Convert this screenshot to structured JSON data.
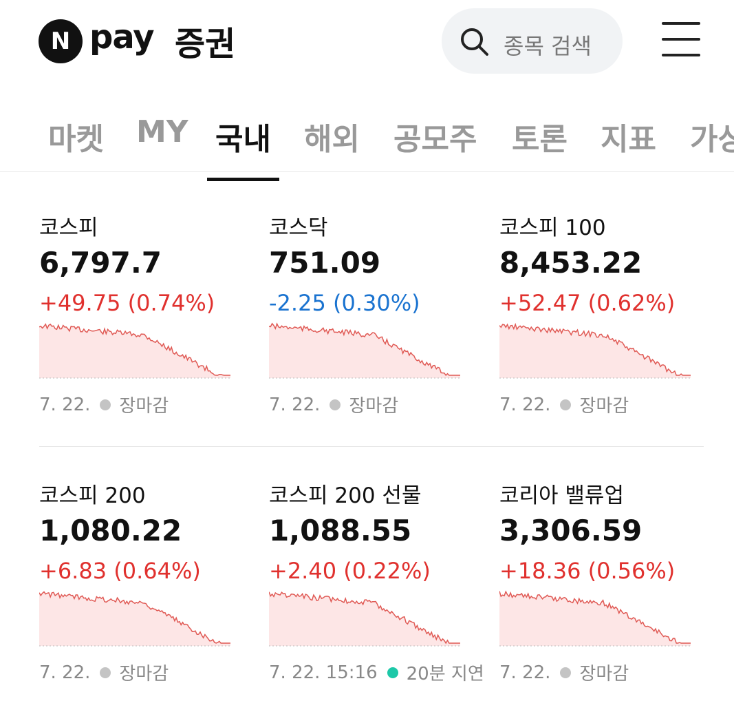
{
  "header": {
    "logo_letter": "N",
    "logo_text": "pay",
    "logo_suffix": "증권",
    "search_placeholder": "종목 검색"
  },
  "tabs": [
    {
      "label": "마켓",
      "active": false
    },
    {
      "label": "MY",
      "active": false
    },
    {
      "label": "국내",
      "active": true
    },
    {
      "label": "해외",
      "active": false
    },
    {
      "label": "공모주",
      "active": false
    },
    {
      "label": "토론",
      "active": false
    },
    {
      "label": "지표",
      "active": false
    },
    {
      "label": "가상",
      "active": false
    }
  ],
  "cards": [
    {
      "name": "코스피",
      "value": "6,797.7",
      "change": "+49.75 (0.74%)",
      "change_color": "#e0312e",
      "date": "7. 22.",
      "status": "장마감",
      "dot_color": "#c4c4c4"
    },
    {
      "name": "코스닥",
      "value": "751.09",
      "change": "-2.25 (0.30%)",
      "change_color": "#1a73d0",
      "date": "7. 22.",
      "status": "장마감",
      "dot_color": "#c4c4c4"
    },
    {
      "name": "코스피 100",
      "value": "8,453.22",
      "change": "+52.47 (0.62%)",
      "change_color": "#e0312e",
      "date": "7. 22.",
      "status": "장마감",
      "dot_color": "#c4c4c4"
    },
    {
      "name": "코스피 200",
      "value": "1,080.22",
      "change": "+6.83 (0.64%)",
      "change_color": "#e0312e",
      "date": "7. 22.",
      "status": "장마감",
      "dot_color": "#c4c4c4"
    },
    {
      "name": "코스피 200 선물",
      "value": "1,088.55",
      "change": "+2.40 (0.22%)",
      "change_color": "#e0312e",
      "date": "7. 22. 15:16",
      "status": "20분 지연",
      "dot_color": "#1dc8a8"
    },
    {
      "name": "코리아 밸류업",
      "value": "3,306.59",
      "change": "+18.36 (0.56%)",
      "change_color": "#e0312e",
      "date": "7. 22.",
      "status": "장마감",
      "dot_color": "#c4c4c4"
    }
  ]
}
